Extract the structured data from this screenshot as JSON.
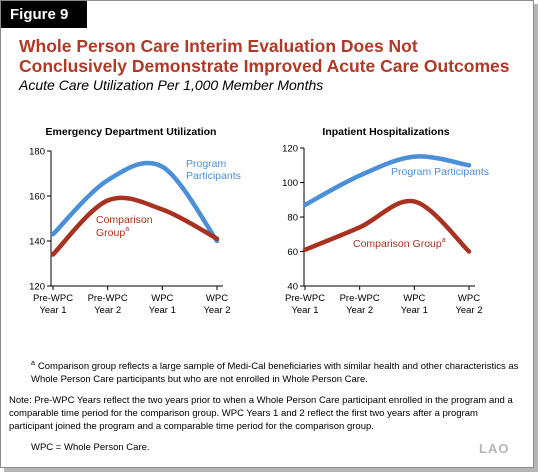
{
  "figure_label": "Figure 9",
  "title": "Whole Person Care Interim Evaluation Does Not Conclusively Demonstrate Improved Acute Care Outcomes",
  "subtitle": "Acute Care Utilization Per 1,000 Member Months",
  "colors": {
    "program": "#4a8fd8",
    "comparison": "#a8321f",
    "title": "#b03a26"
  },
  "chart_data": [
    {
      "type": "line",
      "title": "Emergency Department Utilization",
      "categories": [
        "Pre-WPC Year 1",
        "Pre-WPC Year 2",
        "WPC Year 1",
        "WPC Year 2"
      ],
      "category_lines": [
        [
          "Pre-WPC",
          "Year 1"
        ],
        [
          "Pre-WPC",
          "Year 2"
        ],
        [
          "WPC",
          "Year 1"
        ],
        [
          "WPC",
          "Year 2"
        ]
      ],
      "ylim": [
        120,
        180
      ],
      "yticks": [
        "120",
        "140",
        "160",
        "180"
      ],
      "ytick_values": [
        120,
        140,
        160,
        180
      ],
      "series": [
        {
          "name": "Program Participants",
          "label_lines": [
            "Program",
            "Participants"
          ],
          "key": "program",
          "values": [
            143,
            167,
            173,
            140
          ]
        },
        {
          "name": "Comparison Group",
          "label_lines": [
            "Comparison",
            "Group"
          ],
          "label_sup": "a",
          "key": "comparison",
          "values": [
            134,
            158,
            154,
            141
          ]
        }
      ]
    },
    {
      "type": "line",
      "title": "Inpatient Hospitalizations",
      "categories": [
        "Pre-WPC Year 1",
        "Pre-WPC Year 2",
        "WPC Year 1",
        "WPC Year 2"
      ],
      "category_lines": [
        [
          "Pre-WPC",
          "Year 1"
        ],
        [
          "Pre-WPC",
          "Year 2"
        ],
        [
          "WPC",
          "Year 1"
        ],
        [
          "WPC",
          "Year 2"
        ]
      ],
      "ylim": [
        40,
        120
      ],
      "yticks": [
        "40",
        "60",
        "80",
        "100",
        "120"
      ],
      "ytick_values": [
        40,
        60,
        80,
        100,
        120
      ],
      "series": [
        {
          "name": "Program Participants",
          "label_lines": [
            "Program Participants"
          ],
          "key": "program",
          "values": [
            87,
            104,
            115,
            110
          ]
        },
        {
          "name": "Comparison Group",
          "label_lines": [
            "Comparison Group"
          ],
          "label_sup": "a",
          "key": "comparison",
          "values": [
            61,
            74,
            89,
            60
          ]
        }
      ]
    }
  ],
  "footnotes": {
    "a_marker": "a",
    "a_text": "Comparison group reflects a large sample of Medi-Cal beneficiaries with similar health and other characteristics as Whole Person Care participants but who are not enrolled in Whole Person Care.",
    "note_text": "Note: Pre-WPC Years reflect the two years prior to when a Whole Person Care participant enrolled in the program and a comparable time period for the comparison group. WPC Years 1 and 2 reflect the first two years after a program participant joined the program and a comparable time period for the comparison group.",
    "wpc_text": "WPC = Whole Person Care."
  },
  "logo_text": "LAO"
}
